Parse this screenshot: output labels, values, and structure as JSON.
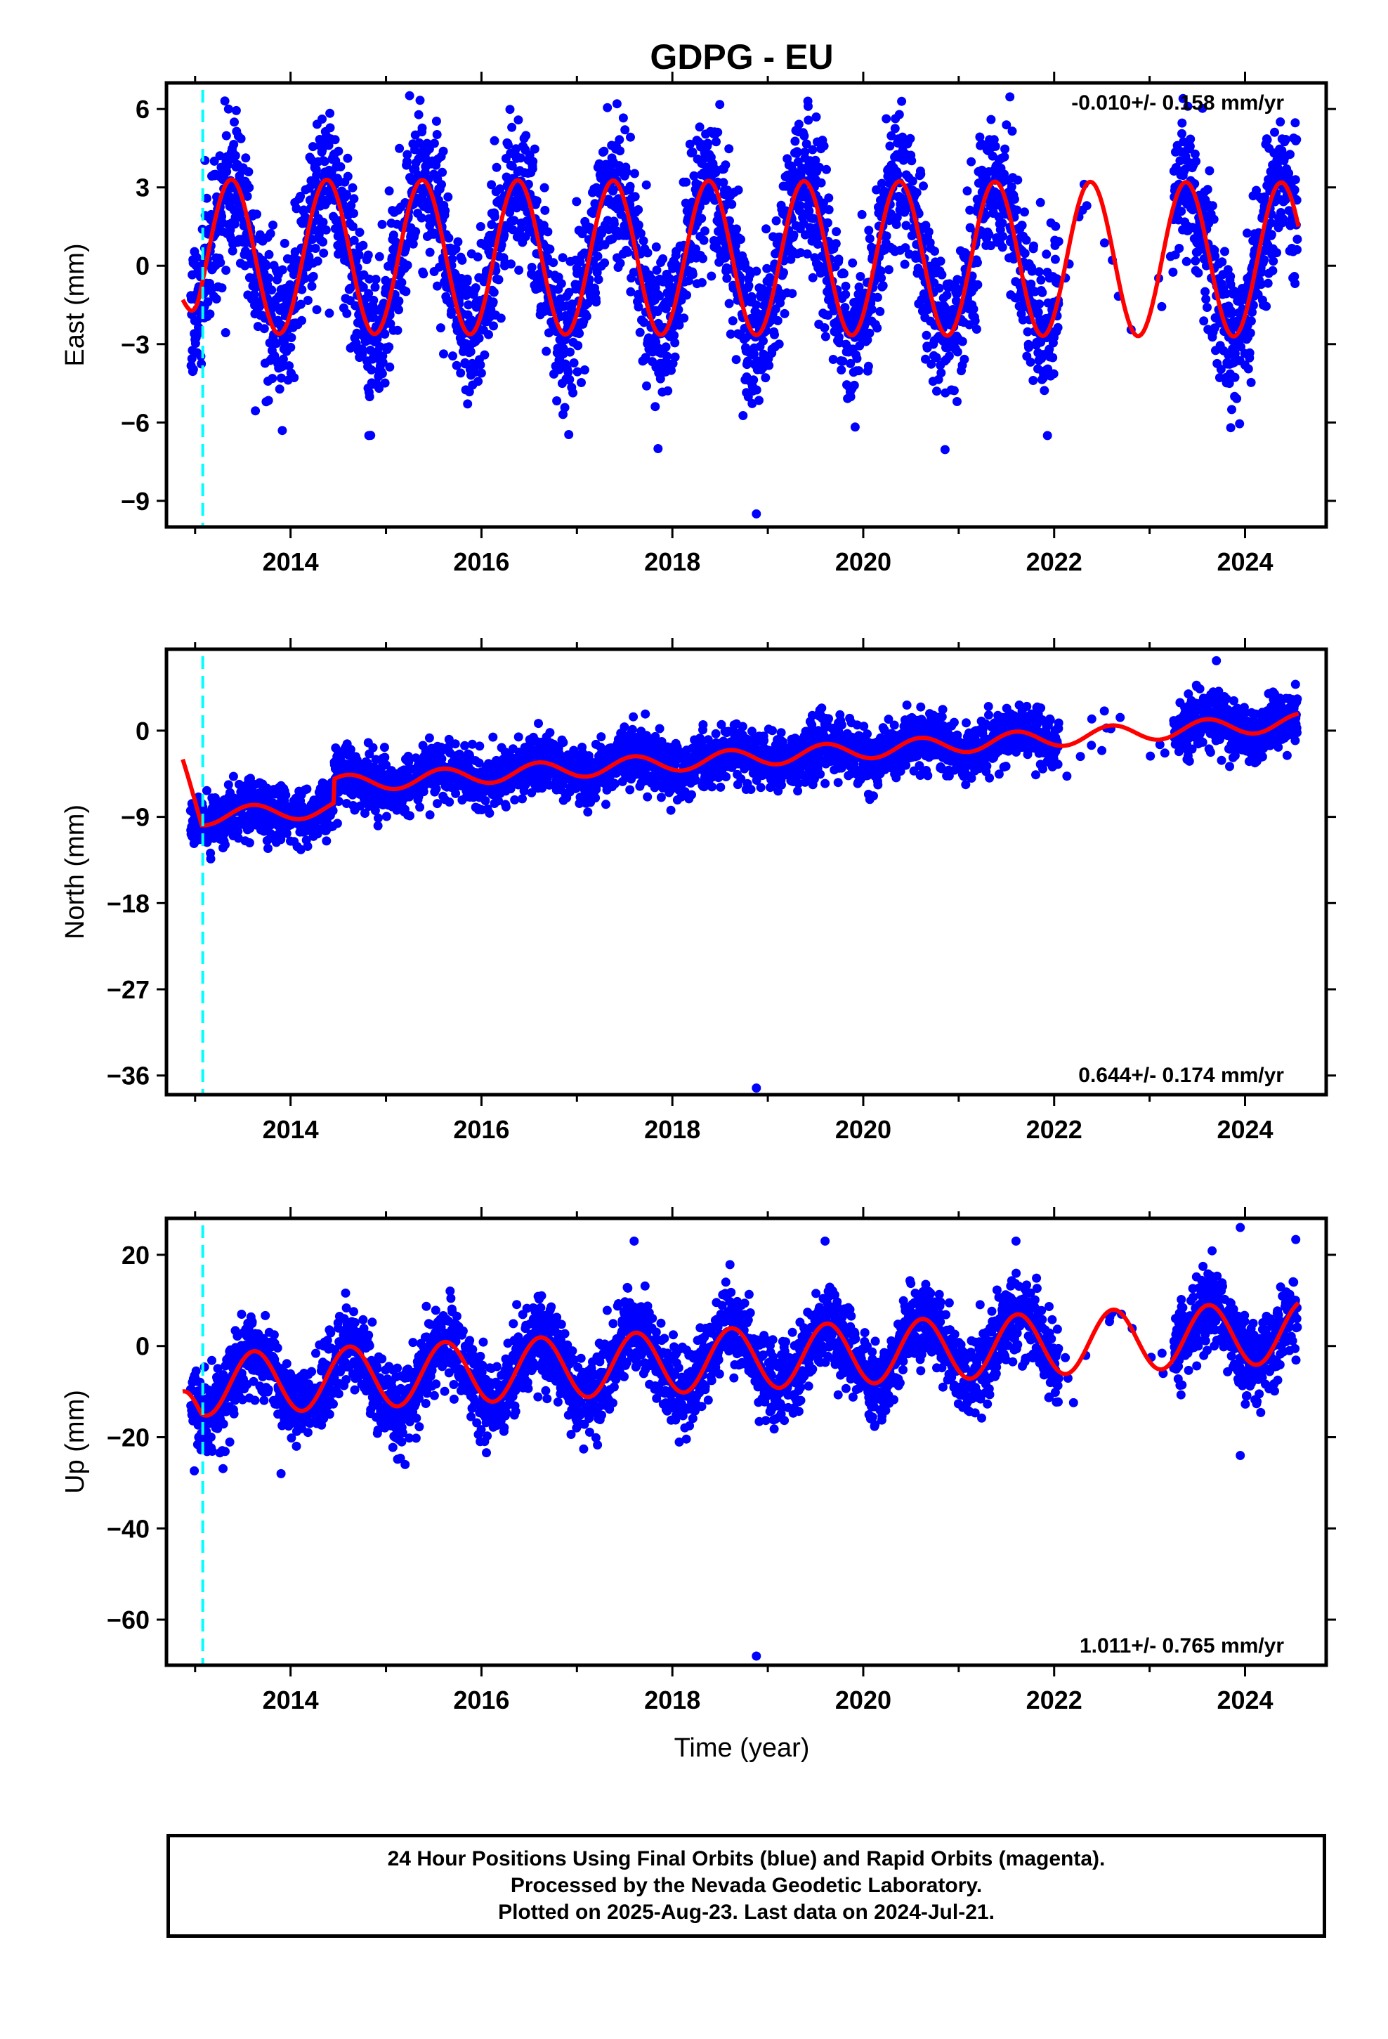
{
  "title": "GDPG - EU",
  "xlabel": "Time (year)",
  "footer": {
    "line1": "24 Hour Positions Using Final Orbits (blue) and Rapid Orbits (magenta).",
    "line2": "Processed by the Nevada Geodetic Laboratory.",
    "line3": "Plotted on 2025-Aug-23. Last data on 2024-Jul-21."
  },
  "colors": {
    "data_points": "#0000ff",
    "model_fit": "#ff0000",
    "event_line": "#00ffff",
    "frame": "#000000"
  },
  "chart_data": [
    {
      "type": "scatter",
      "component": "east",
      "ylabel": "East (mm)",
      "xlim": [
        2012.7,
        2024.85
      ],
      "ylim": [
        -10,
        7
      ],
      "yticks": [
        -9,
        -6,
        -3,
        0,
        3,
        6
      ],
      "xticks": [
        2014,
        2016,
        2018,
        2020,
        2022,
        2024
      ],
      "rate_label": "-0.010+/- 0.158 mm/yr",
      "rate_position": "top-right",
      "event_line_x": 2013.08,
      "model": {
        "offset": 0.3,
        "trend_mm_per_yr": -0.01,
        "annual_amp": 2.95,
        "annual_peak_frac": 0.38,
        "start_value": -1.3
      },
      "scatter_noise_mm": 1.4,
      "data_span": [
        2012.95,
        2024.55
      ],
      "gaps": [
        [
          2022.05,
          2023.25
        ]
      ],
      "sparse_gap_points": 14,
      "outliers": [
        [
          2018.88,
          -9.5
        ],
        [
          2017.85,
          -7.0
        ],
        [
          2014.82,
          -6.5
        ],
        [
          2023.85,
          -6.2
        ],
        [
          2013.35,
          6.0
        ],
        [
          2017.42,
          6.2
        ],
        [
          2019.42,
          6.3
        ],
        [
          2023.35,
          6.4
        ]
      ]
    },
    {
      "type": "scatter",
      "component": "north",
      "ylabel": "North (mm)",
      "xlim": [
        2012.7,
        2024.85
      ],
      "ylim": [
        -38,
        8.5
      ],
      "yticks": [
        -36,
        -27,
        -18,
        -9,
        0
      ],
      "xticks": [
        2014,
        2016,
        2018,
        2020,
        2022,
        2024
      ],
      "rate_label": "0.644+/- 0.174 mm/yr",
      "rate_position": "bottom-right",
      "event_line_x": 2013.08,
      "model": {
        "offset": -5.5,
        "trend_mm_per_yr": 0.644,
        "annual_amp": 0.9,
        "annual_peak_frac": 0.6,
        "step_2014_5": 2.5,
        "start_value": -3.0
      },
      "scatter_noise_mm": 1.4,
      "data_span": [
        2012.95,
        2024.55
      ],
      "gaps": [
        [
          2022.05,
          2023.25
        ]
      ],
      "sparse_gap_points": 12,
      "outliers": [
        [
          2018.88,
          -37.3
        ],
        [
          2014.05,
          -9.3
        ],
        [
          2018.32,
          -5.8
        ],
        [
          2023.7,
          7.3
        ]
      ]
    },
    {
      "type": "scatter",
      "component": "up",
      "ylabel": "Up (mm)",
      "xlim": [
        2012.7,
        2024.85
      ],
      "ylim": [
        -70,
        28
      ],
      "yticks": [
        -60,
        -40,
        -20,
        0,
        20
      ],
      "xticks": [
        2014,
        2016,
        2018,
        2020,
        2022,
        2024
      ],
      "rate_label": "1.011+/- 0.765 mm/yr",
      "rate_position": "bottom-right",
      "event_line_x": 2013.08,
      "model": {
        "offset": -3.0,
        "trend_mm_per_yr": 1.011,
        "annual_amp": 6.8,
        "annual_peak_frac": 0.62,
        "start_value": -10.0
      },
      "scatter_noise_mm": 4.5,
      "data_span": [
        2012.95,
        2024.55
      ],
      "gaps": [
        [
          2022.05,
          2023.25
        ]
      ],
      "sparse_gap_points": 12,
      "outliers": [
        [
          2018.88,
          -68.0
        ],
        [
          2013.9,
          -28.0
        ],
        [
          2015.2,
          -26.0
        ],
        [
          2023.95,
          -24.0
        ],
        [
          2017.6,
          23.0
        ],
        [
          2019.6,
          23.0
        ],
        [
          2021.6,
          23.0
        ],
        [
          2023.95,
          26.0
        ]
      ]
    }
  ]
}
